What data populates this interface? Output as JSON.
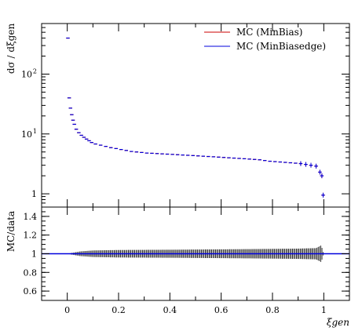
{
  "chart_data": [
    {
      "type": "scatter",
      "panel": "main",
      "ylabel": "dσ / dξgen",
      "yscale": "log",
      "xlim": [
        -0.1,
        1.1
      ],
      "ylim": [
        0.6,
        700
      ],
      "yticks": [
        {
          "value": 1,
          "base": "1",
          "exp": ""
        },
        {
          "value": 10,
          "base": "10",
          "exp": "1"
        },
        {
          "value": 100,
          "base": "10",
          "exp": "2"
        }
      ],
      "legend_placement": "top-right",
      "colors": {
        "minbias": "#cc0000",
        "minbiasedge": "#0000dd"
      },
      "series": [
        {
          "name": "MC (MinBias)",
          "color": "#cc0000",
          "x": [
            0.0025,
            0.0075,
            0.0125,
            0.0175,
            0.0225,
            0.0275,
            0.035,
            0.045,
            0.055,
            0.065,
            0.075,
            0.085,
            0.095,
            0.11,
            0.13,
            0.15,
            0.17,
            0.19,
            0.21,
            0.23,
            0.25,
            0.27,
            0.29,
            0.31,
            0.33,
            0.35,
            0.37,
            0.39,
            0.41,
            0.43,
            0.45,
            0.47,
            0.49,
            0.51,
            0.53,
            0.55,
            0.57,
            0.59,
            0.61,
            0.63,
            0.65,
            0.67,
            0.69,
            0.71,
            0.73,
            0.75,
            0.77,
            0.79,
            0.81,
            0.83,
            0.85,
            0.87,
            0.89,
            0.91,
            0.93,
            0.95,
            0.97,
            0.985,
            0.9925,
            0.9975
          ],
          "y": [
            400,
            40,
            27,
            21,
            17,
            14.5,
            12,
            10.5,
            9.5,
            8.8,
            8.2,
            7.7,
            7.2,
            6.8,
            6.5,
            6.2,
            5.9,
            5.7,
            5.5,
            5.3,
            5.1,
            5.0,
            4.9,
            4.8,
            4.75,
            4.7,
            4.65,
            4.6,
            4.55,
            4.5,
            4.45,
            4.4,
            4.35,
            4.3,
            4.25,
            4.2,
            4.15,
            4.1,
            4.05,
            4.0,
            3.95,
            3.9,
            3.85,
            3.8,
            3.75,
            3.7,
            3.6,
            3.5,
            3.45,
            3.4,
            3.35,
            3.3,
            3.25,
            3.2,
            3.1,
            3.0,
            2.9,
            2.3,
            2.0,
            0.95
          ]
        },
        {
          "name": "MC (MinBiasedge)",
          "color": "#0000dd",
          "x": [
            0.0025,
            0.0075,
            0.0125,
            0.0175,
            0.0225,
            0.0275,
            0.035,
            0.045,
            0.055,
            0.065,
            0.075,
            0.085,
            0.095,
            0.11,
            0.13,
            0.15,
            0.17,
            0.19,
            0.21,
            0.23,
            0.25,
            0.27,
            0.29,
            0.31,
            0.33,
            0.35,
            0.37,
            0.39,
            0.41,
            0.43,
            0.45,
            0.47,
            0.49,
            0.51,
            0.53,
            0.55,
            0.57,
            0.59,
            0.61,
            0.63,
            0.65,
            0.67,
            0.69,
            0.71,
            0.73,
            0.75,
            0.77,
            0.79,
            0.81,
            0.83,
            0.85,
            0.87,
            0.89,
            0.91,
            0.93,
            0.95,
            0.97,
            0.985,
            0.9925,
            0.9975
          ],
          "y": [
            400,
            40,
            27,
            21,
            17,
            14.5,
            12,
            10.5,
            9.5,
            8.8,
            8.2,
            7.7,
            7.2,
            6.8,
            6.5,
            6.2,
            5.9,
            5.7,
            5.5,
            5.3,
            5.1,
            5.0,
            4.9,
            4.8,
            4.75,
            4.7,
            4.65,
            4.6,
            4.55,
            4.5,
            4.45,
            4.4,
            4.35,
            4.3,
            4.25,
            4.2,
            4.15,
            4.1,
            4.05,
            4.0,
            3.95,
            3.9,
            3.85,
            3.8,
            3.75,
            3.7,
            3.6,
            3.5,
            3.45,
            3.4,
            3.35,
            3.3,
            3.25,
            3.2,
            3.1,
            3.0,
            2.9,
            2.3,
            2.0,
            0.95
          ]
        }
      ]
    },
    {
      "type": "line",
      "panel": "ratio",
      "ylabel": "MC/data",
      "xlabel": "ξgen",
      "xlim": [
        -0.1,
        1.1
      ],
      "ylim": [
        0.5,
        1.5
      ],
      "xticks": [
        "0",
        "0.2",
        "0.4",
        "0.6",
        "0.8",
        "1"
      ],
      "yticks": [
        "0.6",
        "0.8",
        "1",
        "1.2",
        "1.4"
      ],
      "reference_line": 1.0,
      "error_band": {
        "x": [
          0.0,
          0.02,
          0.05,
          0.1,
          0.2,
          0.4,
          0.6,
          0.8,
          0.9,
          0.97,
          0.99,
          1.0
        ],
        "half_width": [
          0.0,
          0.01,
          0.025,
          0.035,
          0.04,
          0.043,
          0.047,
          0.052,
          0.055,
          0.06,
          0.09,
          0.0
        ]
      }
    }
  ]
}
